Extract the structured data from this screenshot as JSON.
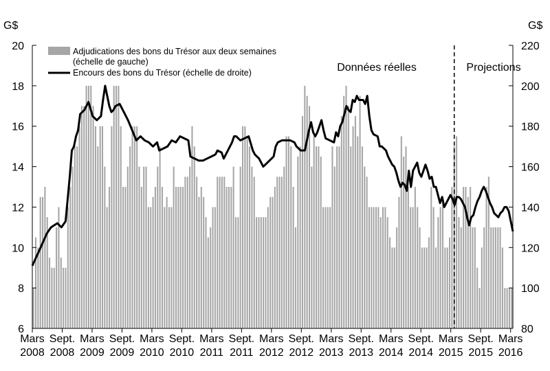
{
  "chart_data": {
    "type": "bar+line",
    "left_axis": {
      "unit": "G$",
      "min": 6,
      "max": 20,
      "ticks": [
        "6",
        "8",
        "10",
        "12",
        "14",
        "16",
        "18",
        "20"
      ]
    },
    "right_axis": {
      "unit": "G$",
      "min": 80,
      "max": 220,
      "ticks": [
        "80",
        "100",
        "120",
        "140",
        "160",
        "180",
        "200",
        "220"
      ]
    },
    "x_ticks": [
      {
        "m1": "Mars",
        "m2": "2008",
        "idx": 0
      },
      {
        "m1": "Sept.",
        "m2": "2008",
        "idx": 13
      },
      {
        "m1": "Mars",
        "m2": "2009",
        "idx": 26
      },
      {
        "m1": "Sept.",
        "m2": "2009",
        "idx": 39
      },
      {
        "m1": "Mars",
        "m2": "2010",
        "idx": 52
      },
      {
        "m1": "Sept.",
        "m2": "2010",
        "idx": 65
      },
      {
        "m1": "Mars",
        "m2": "2011",
        "idx": 78
      },
      {
        "m1": "Sept.",
        "m2": "2011",
        "idx": 91
      },
      {
        "m1": "Mars",
        "m2": "2012",
        "idx": 104
      },
      {
        "m1": "Sept.",
        "m2": "2012",
        "idx": 117
      },
      {
        "m1": "Mars",
        "m2": "2013",
        "idx": 130
      },
      {
        "m1": "Sept.",
        "m2": "2013",
        "idx": 143
      },
      {
        "m1": "Mars",
        "m2": "2014",
        "idx": 156
      },
      {
        "m1": "Sept.",
        "m2": "2014",
        "idx": 169
      },
      {
        "m1": "Mars",
        "m2": "2015",
        "idx": 182
      },
      {
        "m1": "Sept.",
        "m2": "2015",
        "idx": 195
      },
      {
        "m1": "Mars",
        "m2": "2016",
        "idx": 208
      }
    ],
    "period_count": 212,
    "divider_idx": 183.5,
    "legend": [
      {
        "label_line1": "Adjudications des bons du Trésor aux deux semaines",
        "label_line2": "(échelle de gauche)",
        "kind": "bar",
        "color": "#a6a6a6"
      },
      {
        "label_line1": "Encours des bons du Trésor (échelle de droite)",
        "label_line2": "",
        "kind": "line",
        "color": "#000000"
      }
    ],
    "regions": [
      {
        "label": "Données réelles",
        "anchor_idx": 148
      },
      {
        "label": "Projections",
        "anchor_idx": 198
      }
    ],
    "bar_color": "#a6a6a6",
    "line_color": "#000000",
    "bar_values": [
      8.0,
      10.5,
      10.0,
      12.5,
      12.5,
      13.0,
      11.5,
      9.5,
      9.0,
      9.0,
      11.0,
      12.0,
      9.5,
      9.0,
      9.0,
      12.0,
      13.0,
      14.0,
      15.0,
      15.0,
      16.0,
      17.0,
      17.0,
      18.0,
      18.0,
      18.0,
      17.0,
      16.0,
      15.0,
      16.0,
      16.0,
      14.0,
      12.0,
      13.0,
      16.0,
      18.0,
      18.0,
      18.0,
      16.0,
      13.0,
      13.0,
      14.0,
      15.0,
      16.0,
      16.0,
      16.0,
      14.0,
      13.0,
      14.0,
      14.0,
      12.0,
      12.0,
      12.5,
      13.0,
      14.0,
      15.0,
      13.0,
      12.0,
      12.5,
      12.0,
      12.0,
      14.0,
      13.0,
      13.0,
      13.0,
      13.0,
      13.5,
      13.5,
      14.0,
      16.0,
      15.0,
      13.5,
      12.5,
      13.0,
      12.5,
      11.5,
      10.5,
      11.0,
      12.0,
      12.0,
      13.5,
      13.5,
      13.5,
      13.5,
      13.0,
      13.0,
      13.0,
      14.0,
      11.5,
      11.5,
      14.0,
      16.0,
      16.0,
      15.5,
      15.0,
      14.0,
      13.5,
      11.5,
      11.5,
      11.5,
      11.5,
      11.5,
      12.0,
      12.5,
      12.5,
      13.0,
      13.5,
      13.5,
      13.5,
      14.0,
      15.5,
      15.5,
      15.0,
      13.0,
      11.0,
      14.5,
      15.0,
      16.5,
      18.0,
      17.5,
      17.0,
      14.0,
      15.5,
      15.0,
      15.0,
      14.5,
      12.0,
      12.0,
      12.0,
      12.0,
      15.0,
      14.0,
      15.0,
      15.0,
      16.5,
      17.5,
      18.0,
      17.0,
      15.0,
      16.0,
      16.5,
      15.5,
      17.5,
      15.0,
      14.0,
      13.5,
      12.0,
      12.0,
      12.0,
      12.0,
      12.0,
      11.5,
      12.0,
      12.0,
      11.5,
      10.5,
      10.0,
      10.0,
      11.0,
      12.5,
      15.5,
      14.5,
      15.0,
      13.0,
      12.0,
      12.0,
      13.0,
      12.0,
      11.0,
      10.0,
      10.0,
      10.0,
      10.5,
      13.0,
      12.0,
      10.0,
      11.5,
      12.0,
      12.5,
      10.0,
      10.0,
      10.5,
      13.0,
      15.0,
      15.5,
      11.5,
      11.0,
      13.0,
      13.0,
      12.5,
      13.0,
      11.0,
      11.0,
      9.0,
      8.0,
      10.0,
      11.0,
      13.0,
      13.5,
      11.0,
      11.0,
      11.0,
      11.0,
      11.0,
      10.0,
      8.0,
      8.0,
      8.0,
      8.0
    ],
    "line_points": [
      [
        0,
        111
      ],
      [
        4,
        120
      ],
      [
        7,
        127
      ],
      [
        9,
        130
      ],
      [
        12,
        132
      ],
      [
        14,
        130
      ],
      [
        16,
        133
      ],
      [
        18,
        155
      ],
      [
        19,
        168
      ],
      [
        20,
        170
      ],
      [
        21,
        175
      ],
      [
        22,
        178
      ],
      [
        23,
        186
      ],
      [
        25,
        188
      ],
      [
        27,
        192
      ],
      [
        29,
        185
      ],
      [
        31,
        183
      ],
      [
        33,
        185
      ],
      [
        34,
        193
      ],
      [
        35,
        200
      ],
      [
        37,
        190
      ],
      [
        38,
        187
      ],
      [
        39,
        188
      ],
      [
        40,
        190
      ],
      [
        42,
        191
      ],
      [
        44,
        187
      ],
      [
        46,
        183
      ],
      [
        48,
        178
      ],
      [
        50,
        173
      ],
      [
        52,
        175
      ],
      [
        54,
        173
      ],
      [
        56,
        172
      ],
      [
        58,
        170
      ],
      [
        60,
        172
      ],
      [
        61,
        168
      ],
      [
        63,
        169
      ],
      [
        65,
        170
      ],
      [
        67,
        173
      ],
      [
        69,
        172
      ],
      [
        71,
        175
      ],
      [
        73,
        174
      ],
      [
        75,
        173
      ],
      [
        76,
        165
      ],
      [
        78,
        164
      ],
      [
        80,
        163
      ],
      [
        82,
        163
      ],
      [
        84,
        164
      ],
      [
        86,
        165
      ],
      [
        88,
        166
      ],
      [
        89,
        168
      ],
      [
        91,
        167
      ],
      [
        92,
        164
      ],
      [
        94,
        168
      ],
      [
        96,
        172
      ],
      [
        97,
        175
      ],
      [
        98,
        175
      ],
      [
        100,
        173
      ],
      [
        102,
        174
      ],
      [
        104,
        175
      ],
      [
        106,
        168
      ],
      [
        107,
        166
      ],
      [
        109,
        164
      ],
      [
        111,
        160
      ],
      [
        113,
        162
      ],
      [
        115,
        164
      ],
      [
        116,
        165
      ],
      [
        117,
        170
      ],
      [
        118,
        172
      ],
      [
        120,
        173
      ],
      [
        122,
        173
      ],
      [
        124,
        173
      ],
      [
        126,
        172
      ],
      [
        127,
        170
      ],
      [
        129,
        168
      ],
      [
        130,
        168
      ],
      [
        131,
        168
      ],
      [
        133,
        178
      ],
      [
        134,
        182
      ],
      [
        135,
        177
      ],
      [
        136,
        175
      ],
      [
        137,
        177
      ],
      [
        138,
        180
      ],
      [
        139,
        183
      ],
      [
        140,
        178
      ],
      [
        141,
        174
      ],
      [
        143,
        173
      ],
      [
        145,
        172
      ],
      [
        146,
        177
      ],
      [
        147,
        175
      ],
      [
        148,
        180
      ],
      [
        149,
        182
      ],
      [
        151,
        190
      ],
      [
        152,
        188
      ],
      [
        153,
        187
      ],
      [
        154,
        193
      ],
      [
        155,
        192
      ],
      [
        156,
        195
      ],
      [
        157,
        193
      ],
      [
        159,
        193
      ],
      [
        160,
        191
      ],
      [
        161,
        195
      ],
      [
        162,
        185
      ],
      [
        163,
        178
      ],
      [
        164,
        176
      ],
      [
        166,
        175
      ],
      [
        167,
        170
      ],
      [
        168,
        170
      ],
      [
        170,
        168
      ],
      [
        171,
        165
      ],
      [
        173,
        161
      ],
      [
        174,
        160
      ],
      [
        175,
        157
      ],
      [
        176,
        153
      ],
      [
        177,
        150
      ],
      [
        178,
        152
      ],
      [
        179,
        151
      ],
      [
        180,
        148
      ],
      [
        181,
        158
      ],
      [
        182,
        150
      ],
      [
        183,
        158
      ],
      [
        184,
        160
      ],
      [
        185,
        162
      ],
      [
        186,
        157
      ],
      [
        187,
        155
      ],
      [
        188,
        158
      ],
      [
        189,
        161
      ],
      [
        190,
        158
      ],
      [
        191,
        154
      ],
      [
        192,
        155
      ],
      [
        193,
        150
      ],
      [
        194,
        150
      ],
      [
        195,
        146
      ],
      [
        196,
        142
      ],
      [
        197,
        145
      ],
      [
        198,
        140
      ],
      [
        199,
        142
      ],
      [
        201,
        146
      ],
      [
        202,
        144
      ],
      [
        203,
        141
      ],
      [
        204,
        145
      ],
      [
        205,
        145
      ],
      [
        206,
        144
      ],
      [
        207,
        142
      ],
      [
        208,
        140
      ],
      [
        209,
        135
      ],
      [
        210,
        131
      ],
      [
        211,
        135
      ],
      [
        212,
        136
      ],
      [
        213,
        140
      ],
      [
        214,
        143
      ],
      [
        215,
        145
      ],
      [
        216,
        148
      ],
      [
        217,
        150
      ],
      [
        218,
        148
      ],
      [
        219,
        145
      ],
      [
        220,
        142
      ],
      [
        221,
        140
      ],
      [
        222,
        137
      ],
      [
        223,
        136
      ],
      [
        224,
        135
      ],
      [
        225,
        137
      ],
      [
        226,
        138
      ],
      [
        227,
        140
      ],
      [
        228,
        140
      ],
      [
        229,
        138
      ],
      [
        230,
        133
      ],
      [
        231,
        128
      ]
    ]
  }
}
